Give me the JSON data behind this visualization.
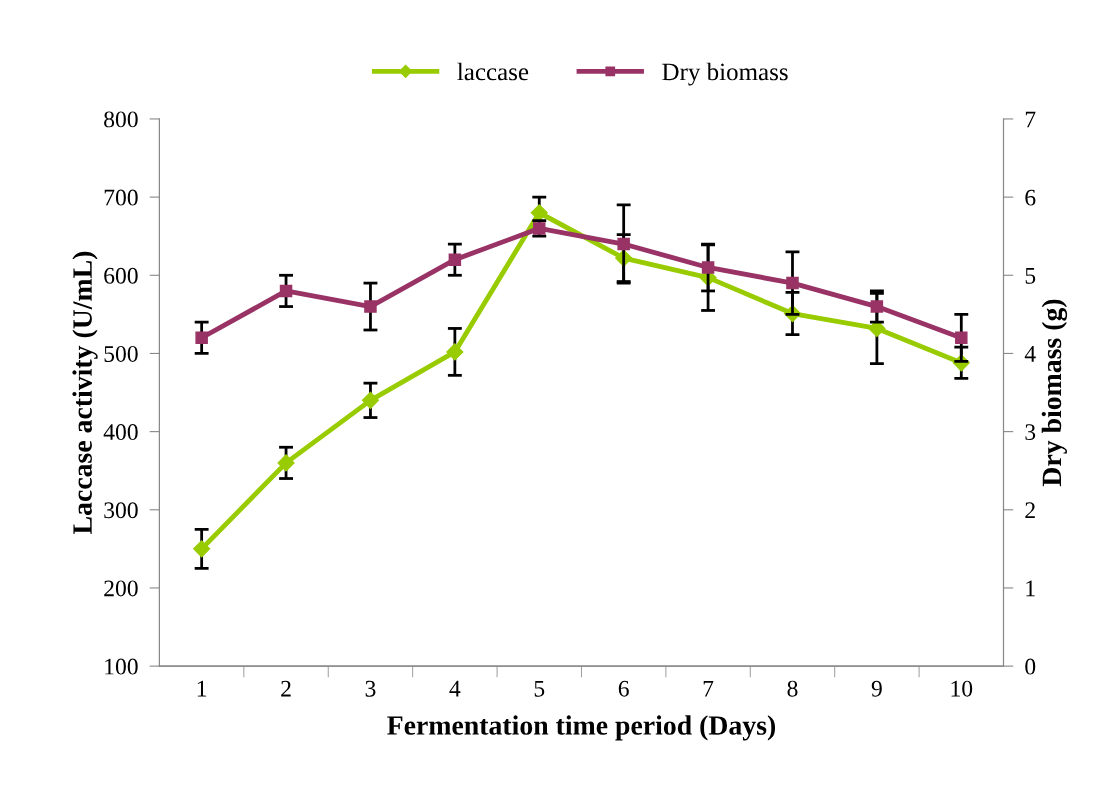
{
  "chart_data": {
    "type": "line",
    "xlabel": "Fermentation time period (Days)",
    "ylabel": "Laccase activity (U/mL)",
    "y2label": "Dry biomass (g)",
    "categories": [
      "1",
      "2",
      "3",
      "4",
      "5",
      "6",
      "7",
      "8",
      "9",
      "10"
    ],
    "series": [
      {
        "name": "laccase",
        "color": "#99cc00",
        "marker": "diamond",
        "values": [
          250,
          360,
          440,
          502,
          680,
          622,
          597,
          551,
          532,
          488
        ],
        "errors": [
          25,
          20,
          22,
          30,
          20,
          30,
          42,
          27,
          45,
          20
        ]
      },
      {
        "name": "Dry biomass",
        "color": "#993366",
        "marker": "square",
        "axis": "y2",
        "values": [
          4.2,
          4.8,
          4.6,
          5.2,
          5.6,
          5.4,
          5.1,
          4.9,
          4.6,
          4.2
        ],
        "errors": [
          0.2,
          0.2,
          0.3,
          0.2,
          0.1,
          0.5,
          0.3,
          0.4,
          0.2,
          0.3
        ]
      }
    ],
    "ylim": [
      100,
      800
    ],
    "yticks": [
      100,
      200,
      300,
      400,
      500,
      600,
      700,
      800
    ],
    "y2lim": [
      0,
      7
    ],
    "y2ticks": [
      0,
      1,
      2,
      3,
      4,
      5,
      6,
      7
    ],
    "grid": false,
    "legend": "top",
    "line_style": "solid"
  }
}
